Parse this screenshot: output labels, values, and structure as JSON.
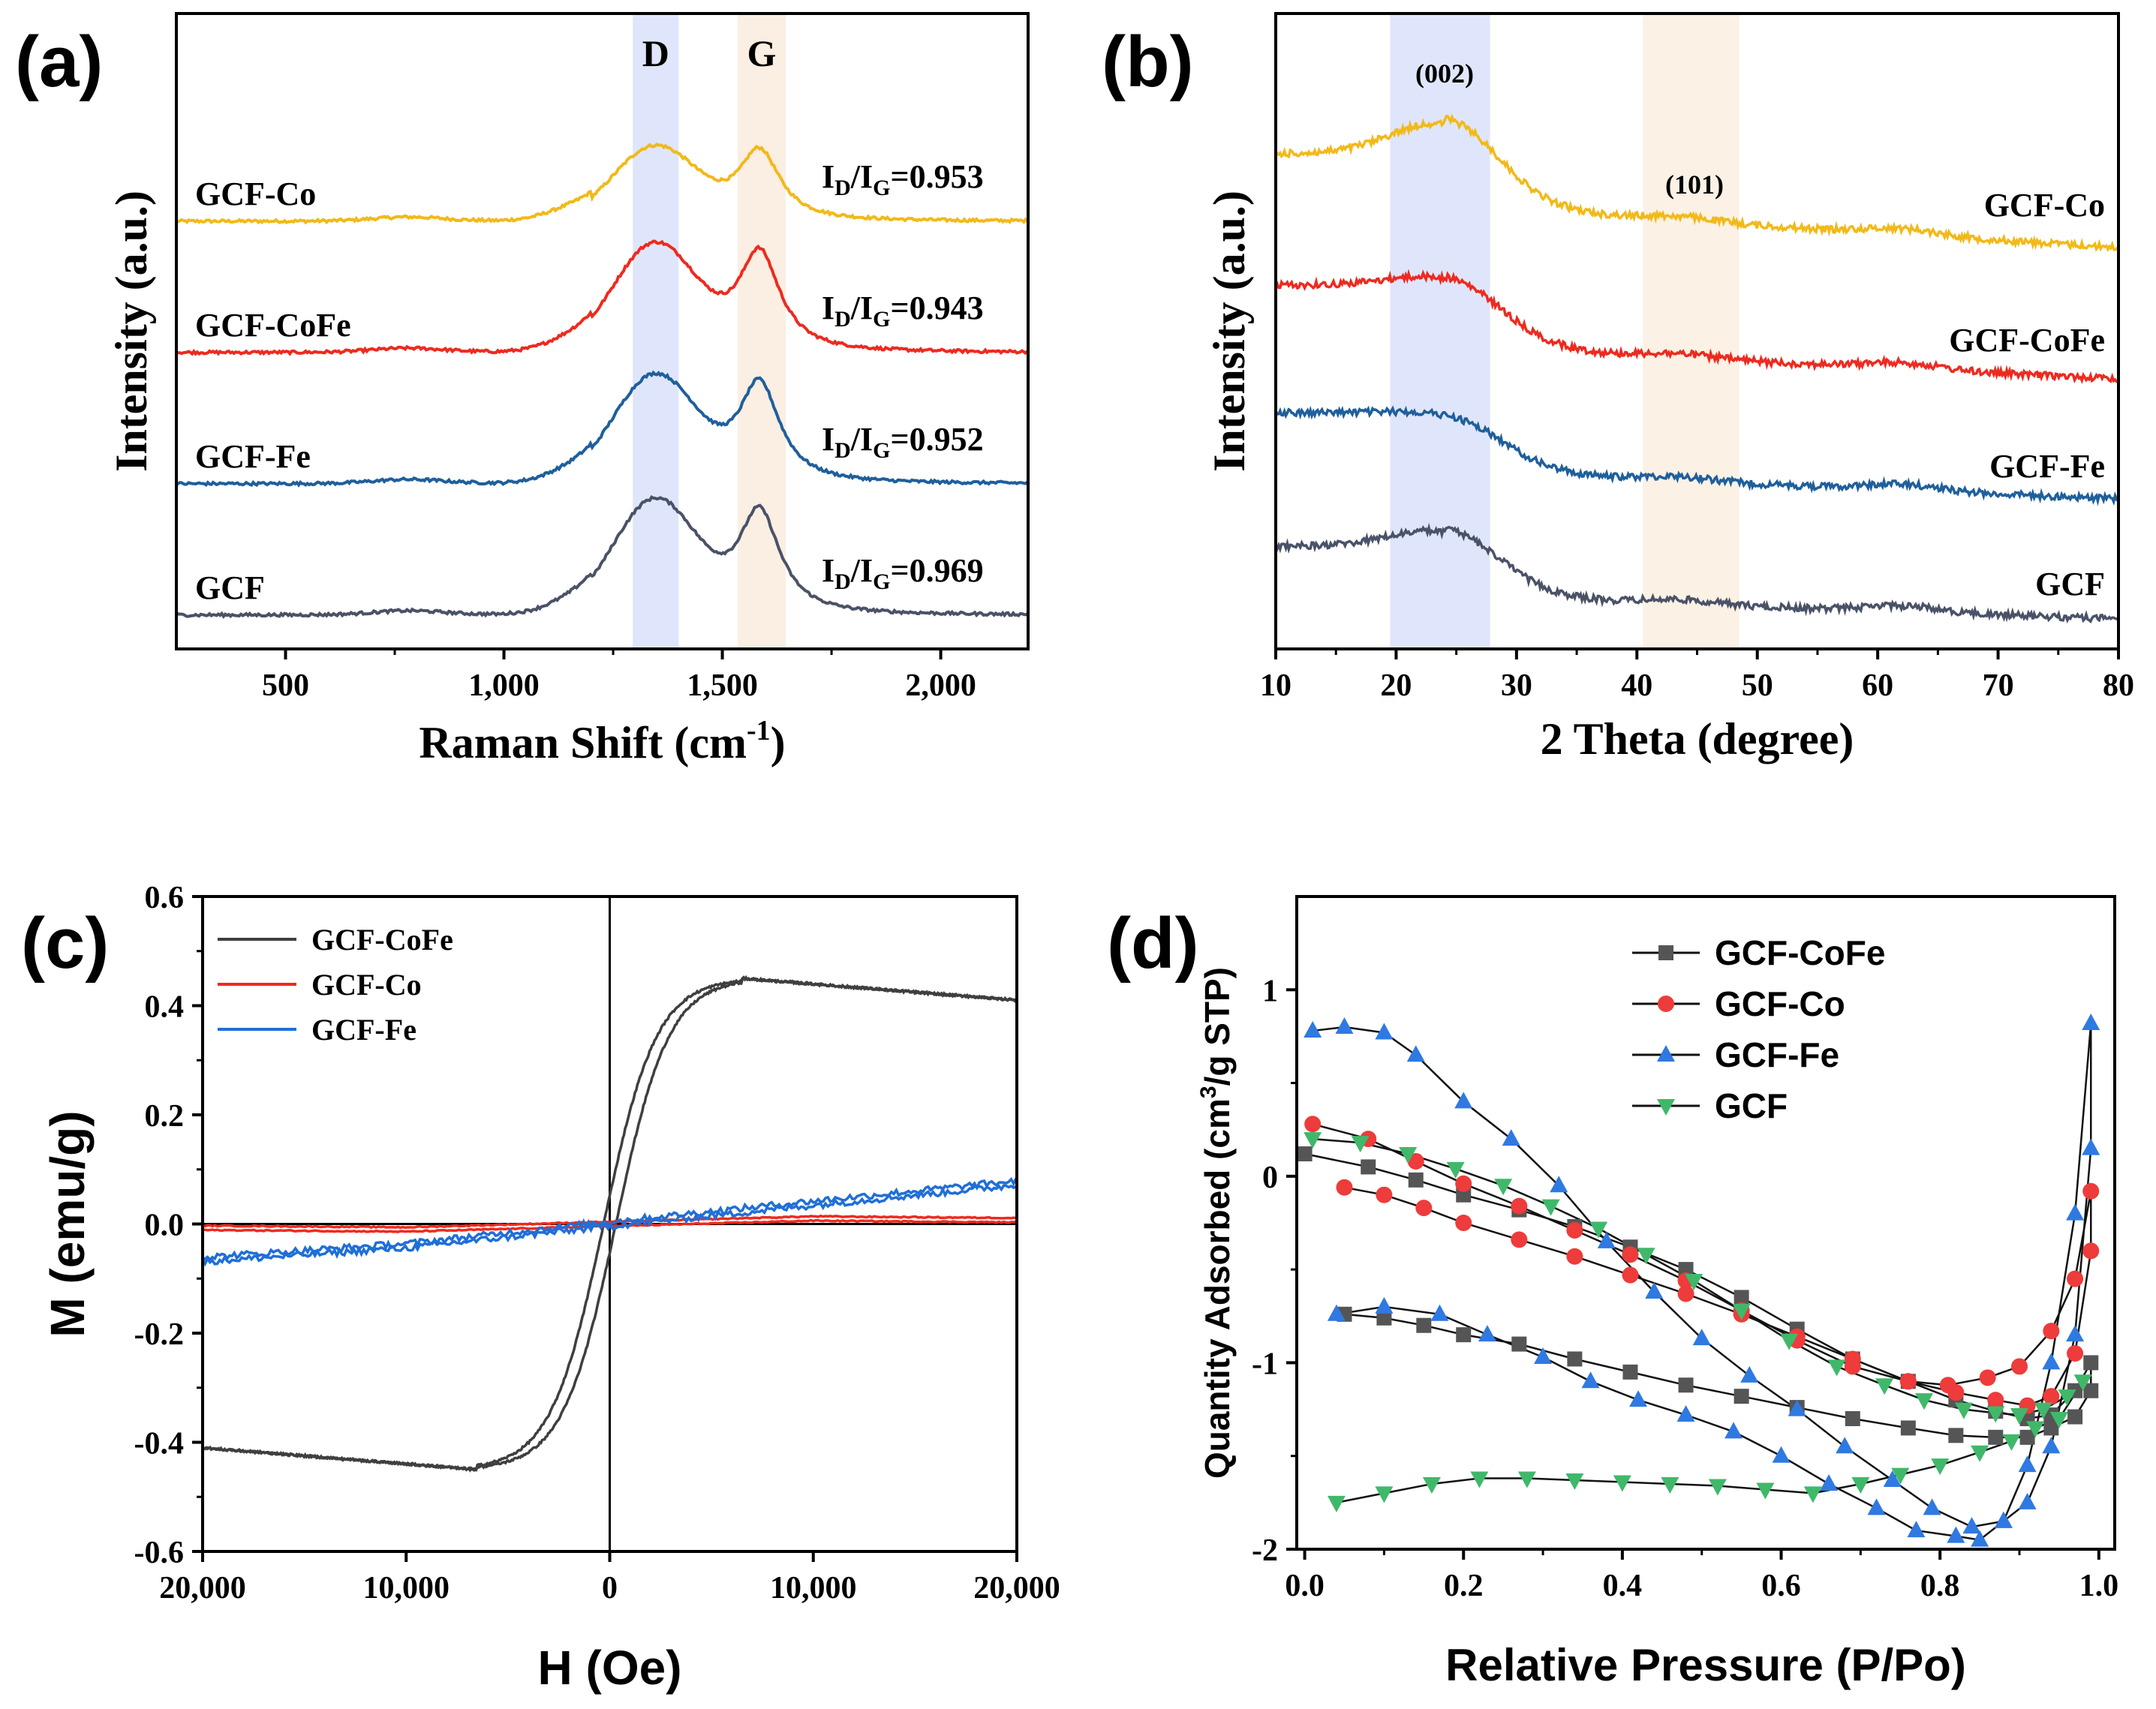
{
  "chart_data": [
    {
      "panel": "(a)",
      "type": "line",
      "xlabel": "Raman Shift (cm",
      "xlabel_sup": "-1",
      "xlabel_close": ")",
      "ylabel": "Intensity (a.u.)",
      "xlim": [
        250,
        2200
      ],
      "xticks": [
        500,
        1000,
        1500,
        2000
      ],
      "xtick_labels": [
        "500",
        "1,000",
        "1,500",
        "2,000"
      ],
      "bands": [
        {
          "label": "D",
          "range": [
            1295,
            1400
          ],
          "color": "#dfe6fb"
        },
        {
          "label": "G",
          "range": [
            1535,
            1645
          ],
          "color": "#fbeee2"
        }
      ],
      "series": [
        {
          "name": "GCF-Co",
          "color": "#f2b918",
          "ratio_prefix": "I",
          "ratio_sub1": "D",
          "ratio_slash": "/I",
          "ratio_sub2": "G",
          "ratio_value": "=0.953",
          "offset": 3,
          "d_height": 0.55,
          "g_height": 0.6
        },
        {
          "name": "GCF-CoFe",
          "color": "#ee2a1f",
          "ratio_prefix": "I",
          "ratio_sub1": "D",
          "ratio_slash": "/I",
          "ratio_sub2": "G",
          "ratio_value": "=0.943",
          "offset": 2,
          "d_height": 0.8,
          "g_height": 0.85
        },
        {
          "name": "GCF-Fe",
          "color": "#1f5f9c",
          "ratio_prefix": "I",
          "ratio_sub1": "D",
          "ratio_slash": "/I",
          "ratio_sub2": "G",
          "ratio_value": "=0.952",
          "offset": 1,
          "d_height": 0.8,
          "g_height": 0.85
        },
        {
          "name": "GCF",
          "color": "#4a5268",
          "ratio_prefix": "I",
          "ratio_sub1": "D",
          "ratio_slash": "/I",
          "ratio_sub2": "G",
          "ratio_value": "=0.969",
          "offset": 0,
          "d_height": 0.85,
          "g_height": 0.88
        }
      ]
    },
    {
      "panel": "(b)",
      "type": "line",
      "xlabel": "2 Theta (degree)",
      "ylabel": "Intensity (a.u.)",
      "xlim": [
        10,
        80
      ],
      "xticks": [
        10,
        20,
        30,
        40,
        50,
        60,
        70,
        80
      ],
      "xtick_labels": [
        "10",
        "20",
        "30",
        "40",
        "50",
        "60",
        "70",
        "80"
      ],
      "bands": [
        {
          "label": "(002)",
          "range": [
            19.5,
            27.8
          ],
          "color": "#dfe6fb"
        },
        {
          "label": "(101)",
          "range": [
            40.5,
            48.5
          ],
          "color": "#fbf1e4"
        }
      ],
      "series": [
        {
          "name": "GCF-Co",
          "color": "#f2b918"
        },
        {
          "name": "GCF-CoFe",
          "color": "#ee2a1f"
        },
        {
          "name": "GCF-Fe",
          "color": "#1f5f9c"
        },
        {
          "name": "GCF",
          "color": "#4a5268"
        }
      ]
    },
    {
      "panel": "(c)",
      "type": "line",
      "xlabel": "H (Oe)",
      "ylabel": "M (emu/g)",
      "xlim": [
        -20000,
        20000
      ],
      "ylim": [
        -0.6,
        0.6
      ],
      "xticks": [
        -20000,
        -10000,
        0,
        10000,
        20000
      ],
      "xtick_labels": [
        "20,000",
        "10,000",
        "0",
        "10,000",
        "20,000"
      ],
      "yticks": [
        -0.6,
        -0.4,
        -0.2,
        0.0,
        0.2,
        0.4,
        0.6
      ],
      "ytick_labels": [
        "-0.6",
        "-0.4",
        "-0.2",
        "0.0",
        "0.2",
        "0.4",
        "0.6"
      ],
      "legend": "top-left",
      "series": [
        {
          "name": "GCF-CoFe",
          "color": "#3f3f3f",
          "Ms": 0.45,
          "saturation_field": 6500,
          "high_field_value": 0.41
        },
        {
          "name": "GCF-Co",
          "color": "#ee2a1f",
          "x": [
            -20000,
            -10000,
            0,
            10000,
            20000
          ],
          "y": [
            -0.007,
            -0.01,
            0.0,
            0.01,
            0.007
          ]
        },
        {
          "name": "GCF-Fe",
          "color": "#1f6fd8",
          "x": [
            -20000,
            -10000,
            0,
            10000,
            20000
          ],
          "y": [
            -0.065,
            -0.04,
            0.0,
            0.038,
            0.075
          ]
        }
      ]
    },
    {
      "panel": "(d)",
      "type": "scatter",
      "xlabel": "Relative Pressure (P/Po)",
      "ylabel": "Quantity Adsorbed (cm",
      "ylabel_sup": "3",
      "ylabel_close": "/g STP)",
      "xlim": [
        0.0,
        1.0
      ],
      "ylim": [
        -2.0,
        1.5
      ],
      "xticks": [
        0.0,
        0.2,
        0.4,
        0.6,
        0.8,
        1.0
      ],
      "xtick_labels": [
        "0.0",
        "0.2",
        "0.4",
        "0.6",
        "0.8",
        "1.0"
      ],
      "yticks": [
        -2,
        -1,
        0,
        1
      ],
      "ytick_labels": [
        "-2",
        "-1",
        "0",
        "1"
      ],
      "legend": "top-right",
      "series": [
        {
          "name": "GCF-CoFe",
          "color": "#555555",
          "marker": "square",
          "upper": {
            "x": [
              0.0,
              0.08,
              0.14,
              0.2,
              0.27,
              0.34,
              0.41,
              0.48,
              0.55,
              0.62,
              0.69,
              0.76,
              0.82,
              0.87,
              0.91,
              0.94,
              0.97,
              0.99
            ],
            "y": [
              0.12,
              0.05,
              -0.02,
              -0.1,
              -0.18,
              -0.27,
              -0.38,
              -0.5,
              -0.65,
              -0.82,
              -0.98,
              -1.1,
              -1.2,
              -1.26,
              -1.3,
              -1.28,
              -1.15,
              -1.0
            ]
          },
          "lower": {
            "x": [
              0.05,
              0.1,
              0.15,
              0.2,
              0.27,
              0.34,
              0.41,
              0.48,
              0.55,
              0.62,
              0.69,
              0.76,
              0.82,
              0.87,
              0.91,
              0.94,
              0.97,
              0.99
            ],
            "y": [
              -0.74,
              -0.76,
              -0.8,
              -0.85,
              -0.9,
              -0.98,
              -1.05,
              -1.12,
              -1.18,
              -1.24,
              -1.3,
              -1.35,
              -1.39,
              -1.4,
              -1.4,
              -1.35,
              -1.29,
              -1.15
            ]
          }
        },
        {
          "name": "GCF-Co",
          "color": "#ee3b3b",
          "marker": "circle",
          "upper": {
            "x": [
              0.01,
              0.08,
              0.14,
              0.2,
              0.27,
              0.34,
              0.41,
              0.48,
              0.55,
              0.62,
              0.69,
              0.76,
              0.81,
              0.86,
              0.9,
              0.94,
              0.97,
              0.99
            ],
            "y": [
              0.28,
              0.2,
              0.08,
              -0.04,
              -0.16,
              -0.29,
              -0.42,
              -0.56,
              -0.72,
              -0.88,
              -1.02,
              -1.1,
              -1.12,
              -1.08,
              -1.02,
              -0.83,
              -0.55,
              -0.08
            ]
          },
          "lower": {
            "x": [
              0.05,
              0.1,
              0.15,
              0.2,
              0.27,
              0.34,
              0.41,
              0.48,
              0.55,
              0.62,
              0.69,
              0.76,
              0.82,
              0.87,
              0.91,
              0.94,
              0.97,
              0.99
            ],
            "y": [
              -0.06,
              -0.1,
              -0.17,
              -0.25,
              -0.34,
              -0.43,
              -0.53,
              -0.63,
              -0.74,
              -0.86,
              -0.98,
              -1.1,
              -1.16,
              -1.2,
              -1.23,
              -1.18,
              -0.95,
              -0.4
            ]
          }
        },
        {
          "name": "GCF-Fe",
          "color": "#2f79e2",
          "marker": "triangle-up",
          "upper": {
            "x": [
              0.01,
              0.05,
              0.1,
              0.14,
              0.2,
              0.26,
              0.32,
              0.38,
              0.44,
              0.5,
              0.56,
              0.62,
              0.68,
              0.74,
              0.79,
              0.84,
              0.88,
              0.91,
              0.94,
              0.97,
              0.99
            ],
            "y": [
              0.78,
              0.8,
              0.77,
              0.65,
              0.4,
              0.2,
              -0.05,
              -0.35,
              -0.62,
              -0.87,
              -1.07,
              -1.25,
              -1.45,
              -1.63,
              -1.78,
              -1.88,
              -1.85,
              -1.55,
              -1.0,
              -0.2,
              0.82
            ]
          },
          "lower": {
            "x": [
              0.04,
              0.1,
              0.17,
              0.23,
              0.3,
              0.36,
              0.42,
              0.48,
              0.54,
              0.6,
              0.66,
              0.72,
              0.77,
              0.82,
              0.85,
              0.88,
              0.91,
              0.94,
              0.97,
              0.99
            ],
            "y": [
              -0.74,
              -0.7,
              -0.74,
              -0.85,
              -0.97,
              -1.1,
              -1.2,
              -1.28,
              -1.37,
              -1.5,
              -1.65,
              -1.78,
              -1.9,
              -1.93,
              -1.95,
              -1.85,
              -1.75,
              -1.45,
              -0.85,
              0.15
            ]
          }
        },
        {
          "name": "GCF",
          "color": "#40b86a",
          "marker": "triangle-down",
          "upper": {
            "x": [
              0.01,
              0.07,
              0.13,
              0.19,
              0.25,
              0.31,
              0.37,
              0.43,
              0.49,
              0.55,
              0.61,
              0.67,
              0.73,
              0.78,
              0.83,
              0.87,
              0.9,
              0.93,
              0.96,
              0.98
            ],
            "y": [
              0.2,
              0.18,
              0.12,
              0.04,
              -0.05,
              -0.16,
              -0.28,
              -0.42,
              -0.56,
              -0.72,
              -0.88,
              -1.02,
              -1.12,
              -1.2,
              -1.25,
              -1.27,
              -1.28,
              -1.25,
              -1.18,
              -1.1
            ]
          },
          "lower": {
            "x": [
              0.04,
              0.1,
              0.16,
              0.22,
              0.28,
              0.34,
              0.4,
              0.46,
              0.52,
              0.58,
              0.64,
              0.7,
              0.75,
              0.8,
              0.85,
              0.89,
              0.92,
              0.95
            ],
            "y": [
              -1.75,
              -1.7,
              -1.65,
              -1.62,
              -1.62,
              -1.63,
              -1.64,
              -1.65,
              -1.66,
              -1.68,
              -1.7,
              -1.65,
              -1.6,
              -1.55,
              -1.48,
              -1.42,
              -1.35,
              -1.3
            ]
          }
        }
      ]
    }
  ]
}
